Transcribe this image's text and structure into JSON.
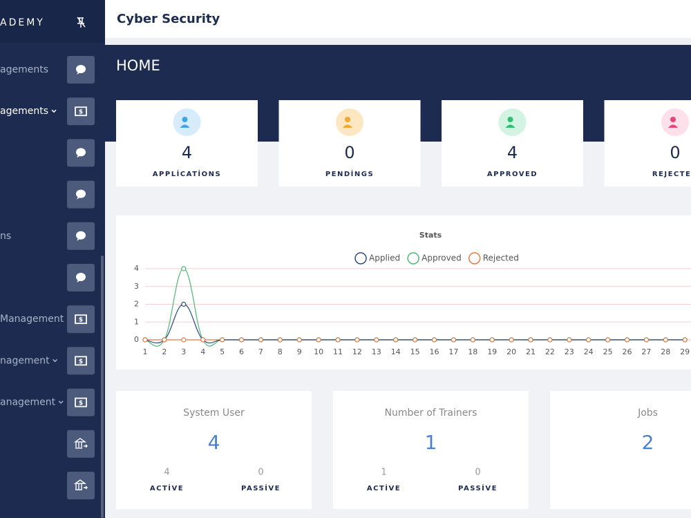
{
  "sidebar": {
    "brand": "ADEMY",
    "items": [
      {
        "label": "agements",
        "icon": "chat"
      },
      {
        "label": "agements",
        "icon": "money",
        "active": true,
        "expandable": true
      },
      {
        "icon": "chat"
      },
      {
        "icon": "chat"
      },
      {
        "label": "ns",
        "icon": "chat"
      },
      {
        "icon": "chat"
      },
      {
        "label": "Management",
        "icon": "money"
      },
      {
        "label": "nagement",
        "icon": "money",
        "expandable": true
      },
      {
        "label": "anagement",
        "icon": "money",
        "expandable": true
      },
      {
        "icon": "bank"
      },
      {
        "icon": "bank"
      }
    ]
  },
  "header": {
    "title": "Cyber Security"
  },
  "page_title": "HOME",
  "summary_cards": [
    {
      "value": 4,
      "label": "APPLİCATİONS",
      "bg": "#d6ecfb",
      "color": "#3fa7e0"
    },
    {
      "value": 0,
      "label": "PENDİNGS",
      "bg": "#fde7c2",
      "color": "#f0a830"
    },
    {
      "value": 4,
      "label": "APPROVED",
      "bg": "#d3f3e3",
      "color": "#2fbf71"
    },
    {
      "value": 0,
      "label": "REJECTED",
      "bg": "#fde0ea",
      "color": "#e8457a"
    }
  ],
  "chart_data": {
    "type": "line",
    "title": "Stats",
    "x": [
      1,
      2,
      3,
      4,
      5,
      6,
      7,
      8,
      9,
      10,
      11,
      12,
      13,
      14,
      15,
      16,
      17,
      18,
      19,
      20,
      21,
      22,
      23,
      24,
      25,
      26,
      27,
      28,
      29
    ],
    "series": [
      {
        "name": "Applied",
        "color": "#2c4a7a",
        "values": [
          0,
          0,
          2,
          0,
          0,
          0,
          0,
          0,
          0,
          0,
          0,
          0,
          0,
          0,
          0,
          0,
          0,
          0,
          0,
          0,
          0,
          0,
          0,
          0,
          0,
          0,
          0,
          0,
          0
        ]
      },
      {
        "name": "Approved",
        "color": "#4cb877",
        "values": [
          0,
          0,
          4,
          0,
          0,
          0,
          0,
          0,
          0,
          0,
          0,
          0,
          0,
          0,
          0,
          0,
          0,
          0,
          0,
          0,
          0,
          0,
          0,
          0,
          0,
          0,
          0,
          0,
          0
        ]
      },
      {
        "name": "Rejected",
        "color": "#e07a45",
        "values": [
          0,
          0,
          0,
          0,
          0,
          0,
          0,
          0,
          0,
          0,
          0,
          0,
          0,
          0,
          0,
          0,
          0,
          0,
          0,
          0,
          0,
          0,
          0,
          0,
          0,
          0,
          0,
          0,
          0
        ]
      }
    ],
    "ylim": [
      0,
      4
    ],
    "yticks": [
      0,
      1,
      2,
      3,
      4
    ],
    "grid": true
  },
  "stat_cards": [
    {
      "title": "System User",
      "value": 4,
      "active": 4,
      "active_label": "ACTİVE",
      "passive": 0,
      "passive_label": "PASSİVE"
    },
    {
      "title": "Number of Trainers",
      "value": 1,
      "active": 1,
      "active_label": "ACTİVE",
      "passive": 0,
      "passive_label": "PASSİVE"
    },
    {
      "title": "Jobs",
      "value": 2
    }
  ]
}
